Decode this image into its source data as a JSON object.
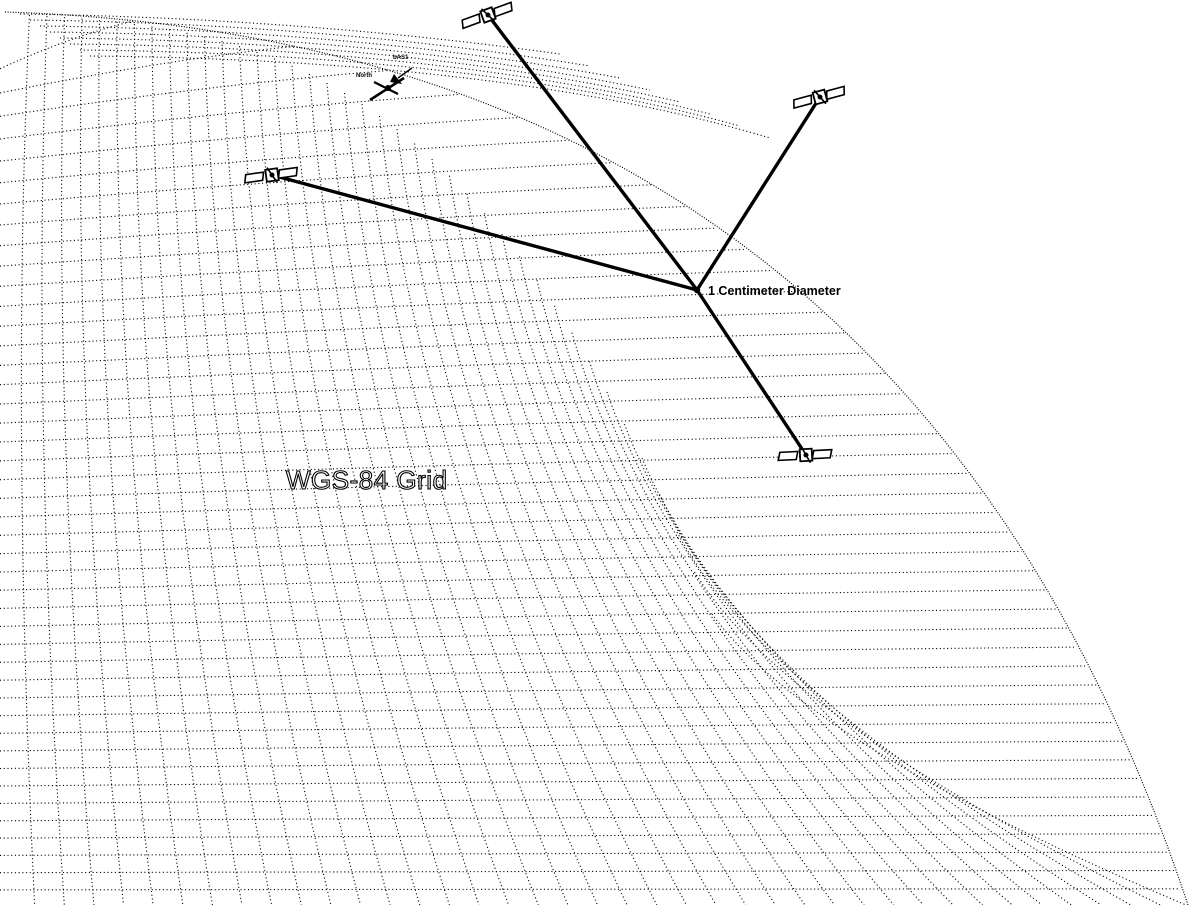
{
  "diagram": {
    "grid_label": "WGS-84 Grid",
    "target_label": "1 Centimeter Diameter",
    "station": {
      "north_label": "North",
      "site_label": "bAS1"
    },
    "satellites": [
      {
        "name": "satellite-top"
      },
      {
        "name": "satellite-upper-right"
      },
      {
        "name": "satellite-left"
      },
      {
        "name": "satellite-lower-right"
      }
    ],
    "colors": {
      "grid": "#000000",
      "lines": "#000000",
      "background": "#ffffff"
    }
  }
}
